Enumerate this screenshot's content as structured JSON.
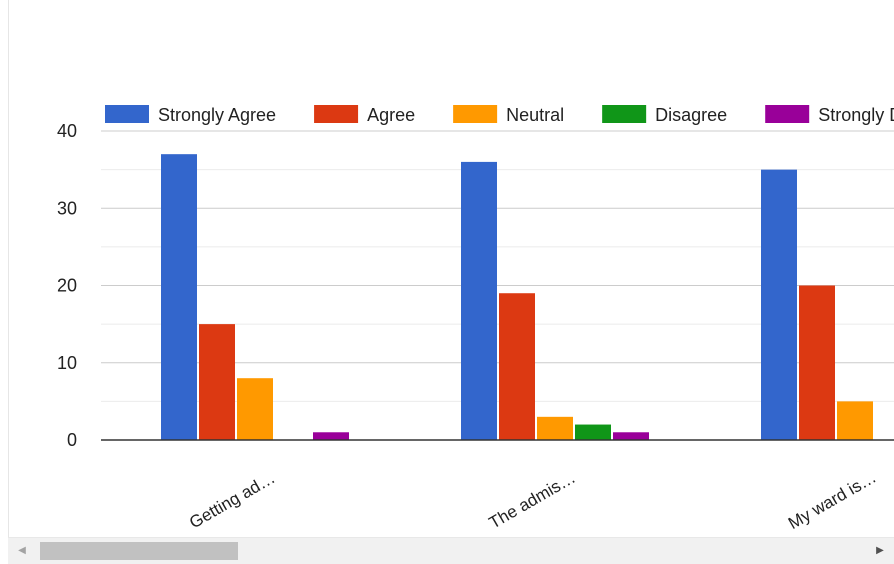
{
  "chart_data": {
    "type": "bar",
    "categories": [
      "Getting ad…",
      "The admis…",
      "My ward is…"
    ],
    "series": [
      {
        "name": "Strongly Agree",
        "color": "#3366cc",
        "values": [
          37,
          36,
          35
        ]
      },
      {
        "name": "Agree",
        "color": "#dc3912",
        "values": [
          15,
          19,
          20
        ]
      },
      {
        "name": "Neutral",
        "color": "#ff9900",
        "values": [
          8,
          3,
          5
        ]
      },
      {
        "name": "Disagree",
        "color": "#109618",
        "values": [
          0,
          2,
          0
        ]
      },
      {
        "name": "Strongly Disagree",
        "color": "#990099",
        "values": [
          1,
          1,
          0
        ]
      }
    ],
    "yticks": [
      0,
      10,
      20,
      30,
      40
    ],
    "ylim": [
      0,
      40
    ],
    "grid": true,
    "legend": "top",
    "title": "",
    "xlabel": "",
    "ylabel": ""
  },
  "scrollbar": {
    "left_icon": "arrow-left-icon",
    "right_icon": "arrow-right-icon",
    "left_glyph": "◀",
    "right_glyph": "▶"
  }
}
